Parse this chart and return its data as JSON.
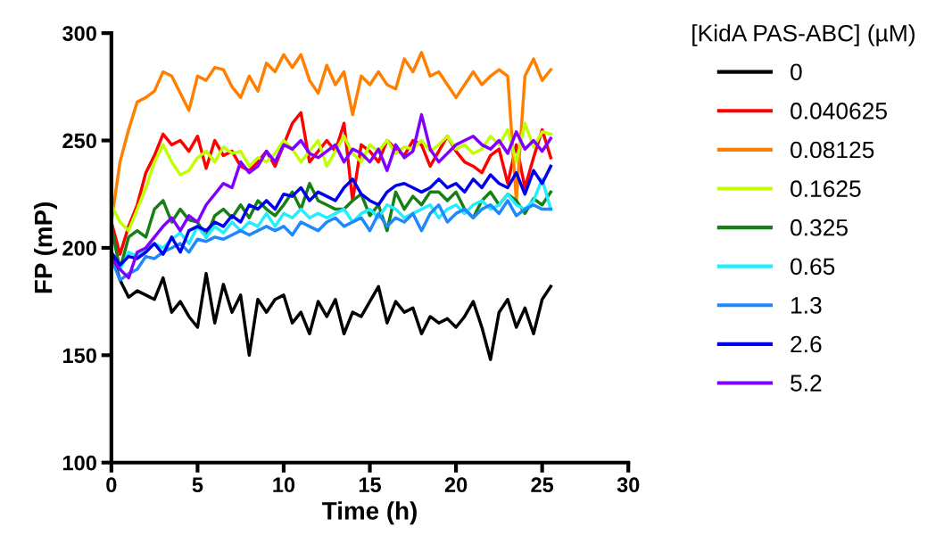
{
  "chart_data": {
    "type": "line",
    "xlabel": "Time (h)",
    "ylabel": "FP (mP)",
    "legend_title": "[KidA PAS-ABC] (µM)",
    "legend": "right",
    "grid": false,
    "marker": "none",
    "line_style": "solid",
    "xlim": [
      0,
      30
    ],
    "xticks": [
      0,
      5,
      10,
      15,
      20,
      25,
      30
    ],
    "ylim": [
      100,
      300
    ],
    "yticks": [
      100,
      150,
      200,
      250,
      300
    ],
    "x": [
      0,
      0.5,
      1,
      1.5,
      2,
      2.5,
      3,
      3.5,
      4,
      4.5,
      5,
      5.5,
      6,
      6.5,
      7,
      7.5,
      8,
      8.5,
      9,
      9.5,
      10,
      10.5,
      11,
      11.5,
      12,
      12.5,
      13,
      13.5,
      14,
      14.5,
      15,
      15.5,
      16,
      16.5,
      17,
      17.5,
      18,
      18.5,
      19,
      19.5,
      20,
      20.5,
      21,
      21.5,
      22,
      22.5,
      23,
      23.5,
      24,
      24.5,
      25,
      25.5
    ],
    "series": [
      {
        "name": "0",
        "color": "#000000",
        "values": [
          198,
          185,
          177,
          180,
          178,
          176,
          186,
          170,
          175,
          168,
          163,
          188,
          165,
          183,
          170,
          178,
          150,
          176,
          170,
          176,
          178,
          165,
          170,
          160,
          175,
          168,
          176,
          160,
          170,
          168,
          175,
          182,
          165,
          175,
          170,
          172,
          160,
          168,
          165,
          167,
          163,
          168,
          175,
          163,
          148,
          170,
          176,
          163,
          172,
          160,
          176,
          182
        ]
      },
      {
        "name": "0.040625",
        "color": "#ff0000",
        "values": [
          212,
          197,
          210,
          220,
          235,
          243,
          253,
          248,
          250,
          245,
          252,
          237,
          250,
          243,
          245,
          238,
          236,
          240,
          245,
          238,
          248,
          258,
          263,
          240,
          245,
          250,
          245,
          258,
          222,
          248,
          245,
          240,
          250,
          246,
          243,
          250,
          248,
          238,
          245,
          252,
          245,
          240,
          238,
          235,
          243,
          246,
          230,
          248,
          228,
          242,
          255,
          242
        ]
      },
      {
        "name": "0.08125",
        "color": "#ff8000",
        "values": [
          212,
          240,
          255,
          268,
          270,
          273,
          282,
          280,
          272,
          264,
          280,
          278,
          284,
          283,
          275,
          270,
          280,
          273,
          286,
          282,
          290,
          284,
          290,
          278,
          272,
          285,
          276,
          282,
          262,
          280,
          276,
          282,
          276,
          274,
          288,
          282,
          291,
          280,
          282,
          276,
          270,
          276,
          282,
          276,
          280,
          283,
          280,
          222,
          280,
          288,
          278,
          283
        ]
      },
      {
        "name": "0.1625",
        "color": "#c0ff00",
        "values": [
          220,
          212,
          208,
          218,
          228,
          240,
          248,
          240,
          234,
          236,
          242,
          245,
          240,
          247,
          244,
          245,
          238,
          242,
          240,
          244,
          250,
          246,
          240,
          245,
          250,
          238,
          245,
          252,
          244,
          240,
          248,
          245,
          250,
          244,
          247,
          246,
          250,
          245,
          248,
          252,
          246,
          248,
          244,
          246,
          252,
          248,
          255,
          240,
          258,
          247,
          254,
          253
        ]
      },
      {
        "name": "0.325",
        "color": "#168016",
        "values": [
          210,
          190,
          205,
          208,
          205,
          218,
          222,
          212,
          218,
          213,
          212,
          205,
          215,
          218,
          214,
          220,
          214,
          222,
          218,
          215,
          220,
          226,
          218,
          230,
          222,
          220,
          218,
          218,
          222,
          225,
          215,
          220,
          208,
          226,
          218,
          224,
          220,
          226,
          226,
          222,
          226,
          218,
          214,
          222,
          226,
          220,
          225,
          222,
          216,
          223,
          220,
          226
        ]
      },
      {
        "name": "0.65",
        "color": "#22eeff",
        "values": [
          null,
          190,
          198,
          196,
          200,
          202,
          200,
          204,
          207,
          202,
          210,
          205,
          210,
          207,
          212,
          208,
          212,
          210,
          216,
          210,
          216,
          214,
          218,
          214,
          216,
          214,
          216,
          218,
          212,
          216,
          218,
          214,
          220,
          218,
          214,
          216,
          218,
          220,
          214,
          218,
          220,
          216,
          220,
          222,
          218,
          220,
          225,
          220,
          218,
          222,
          232,
          218
        ]
      },
      {
        "name": "1.3",
        "color": "#1e88ff",
        "values": [
          195,
          185,
          188,
          190,
          196,
          195,
          198,
          200,
          202,
          198,
          204,
          203,
          205,
          204,
          206,
          208,
          206,
          208,
          210,
          208,
          210,
          206,
          212,
          210,
          208,
          212,
          214,
          210,
          212,
          214,
          208,
          216,
          210,
          214,
          212,
          216,
          208,
          216,
          220,
          212,
          216,
          218,
          214,
          218,
          220,
          216,
          222,
          215,
          218,
          220,
          218,
          218
        ]
      },
      {
        "name": "2.6",
        "color": "#0000ee",
        "values": [
          198,
          192,
          196,
          195,
          198,
          202,
          197,
          205,
          198,
          208,
          210,
          208,
          212,
          210,
          215,
          212,
          220,
          218,
          222,
          218,
          225,
          224,
          228,
          222,
          226,
          224,
          222,
          228,
          232,
          225,
          222,
          220,
          226,
          229,
          230,
          228,
          226,
          228,
          232,
          228,
          230,
          226,
          232,
          228,
          234,
          230,
          228,
          235,
          225,
          236,
          230,
          238
        ]
      },
      {
        "name": "5.2",
        "color": "#8000ff",
        "values": [
          195,
          190,
          186,
          198,
          200,
          205,
          210,
          214,
          208,
          215,
          212,
          220,
          225,
          230,
          228,
          240,
          235,
          238,
          245,
          240,
          248,
          246,
          250,
          244,
          242,
          245,
          248,
          240,
          246,
          244,
          240,
          246,
          236,
          248,
          242,
          245,
          262,
          246,
          240,
          244,
          248,
          250,
          252,
          248,
          246,
          250,
          244,
          254,
          246,
          250,
          245,
          251
        ]
      }
    ]
  }
}
